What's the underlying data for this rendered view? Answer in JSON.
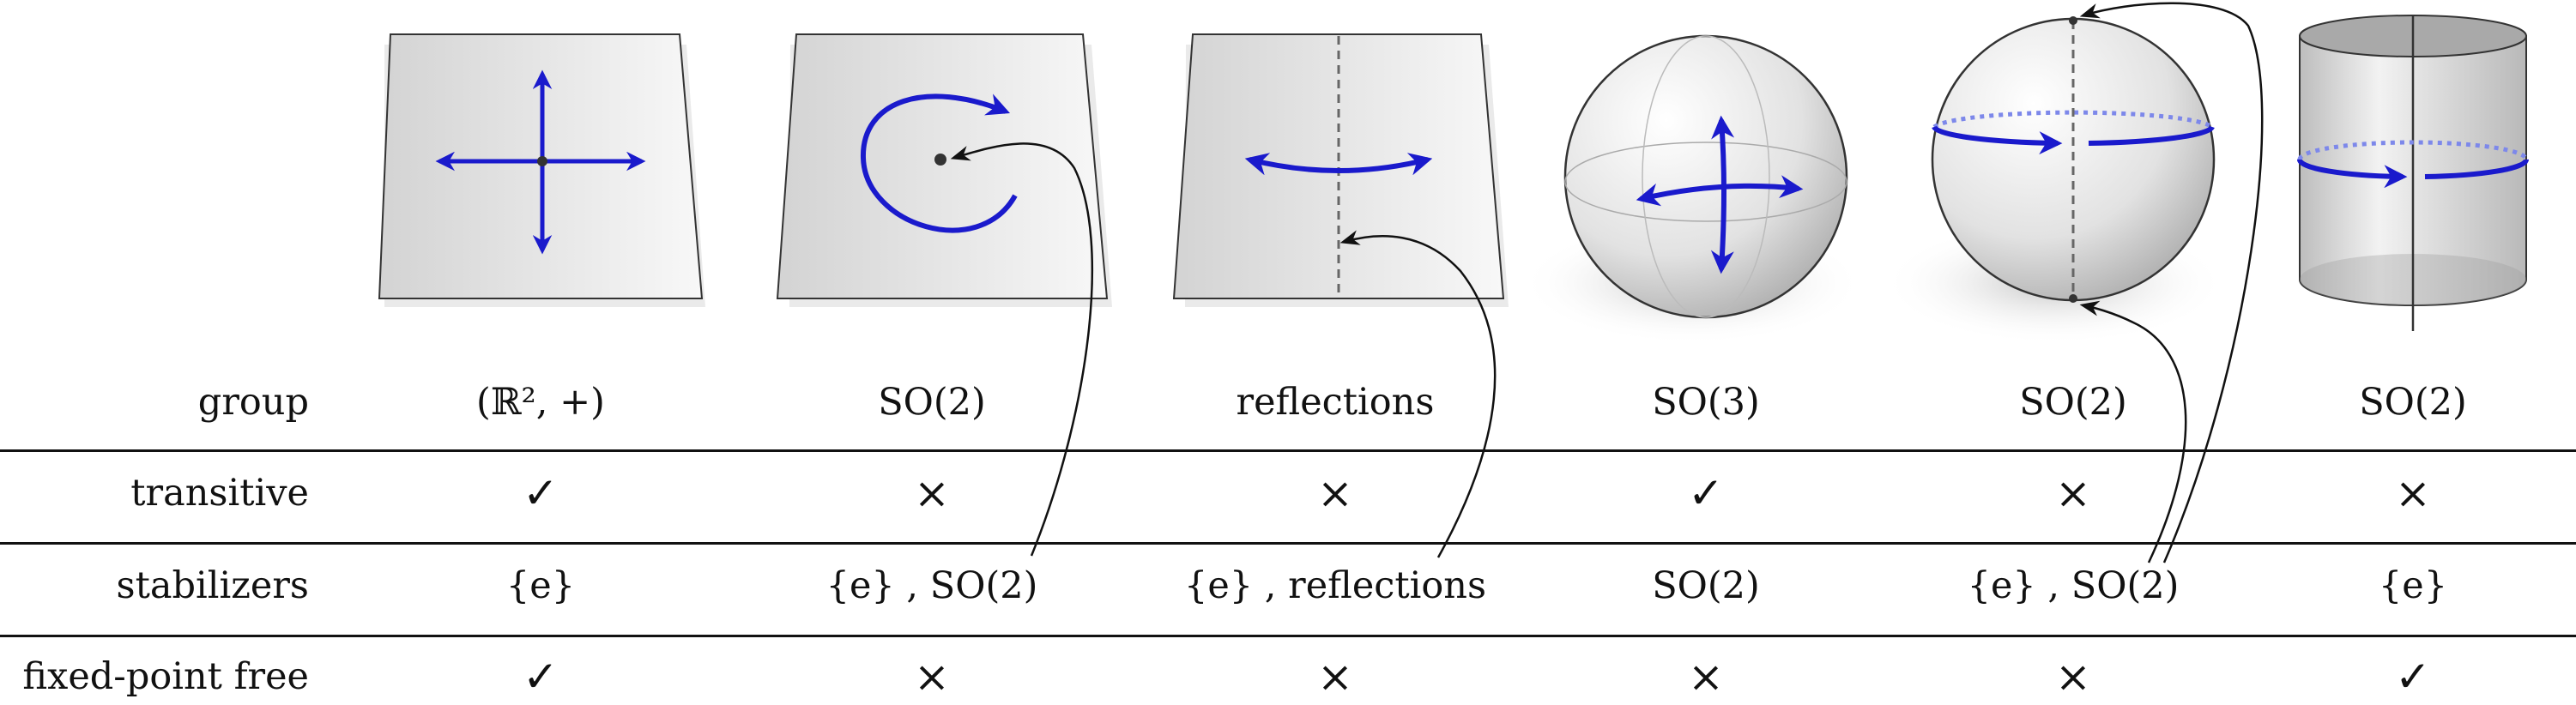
{
  "rows": [
    {
      "label": "group",
      "cells": [
        "(ℝ², +)",
        "SO(2)",
        "reflections",
        "SO(3)",
        "SO(2)",
        "SO(2)"
      ]
    },
    {
      "label": "transitive",
      "cells": [
        "✓",
        "×",
        "×",
        "✓",
        "×",
        "×"
      ]
    },
    {
      "label": "stabilizers",
      "cells": [
        "{e}",
        "{e} , SO(2)",
        "{e} , reflections",
        "SO(2)",
        "{e} , SO(2)",
        "{e}"
      ]
    },
    {
      "label": "fixed-point free",
      "cells": [
        "✓",
        "×",
        "×",
        "×",
        "×",
        "✓"
      ]
    }
  ],
  "illustrations": [
    {
      "shape": "plane",
      "motion": "translation arrows in two directions"
    },
    {
      "shape": "plane",
      "motion": "rotation about a fixed point"
    },
    {
      "shape": "plane",
      "motion": "reflection across a dashed axis"
    },
    {
      "shape": "sphere",
      "motion": "rotations in all directions"
    },
    {
      "shape": "sphere",
      "motion": "rotation about the vertical axis with two fixed poles"
    },
    {
      "shape": "cylinder",
      "motion": "rotation around the cylinder axis"
    }
  ],
  "colors": {
    "arrow": "#1a1acc",
    "line": "#111111",
    "surface_light": "#f4f4f4",
    "surface_dark": "#bdbdbd"
  }
}
